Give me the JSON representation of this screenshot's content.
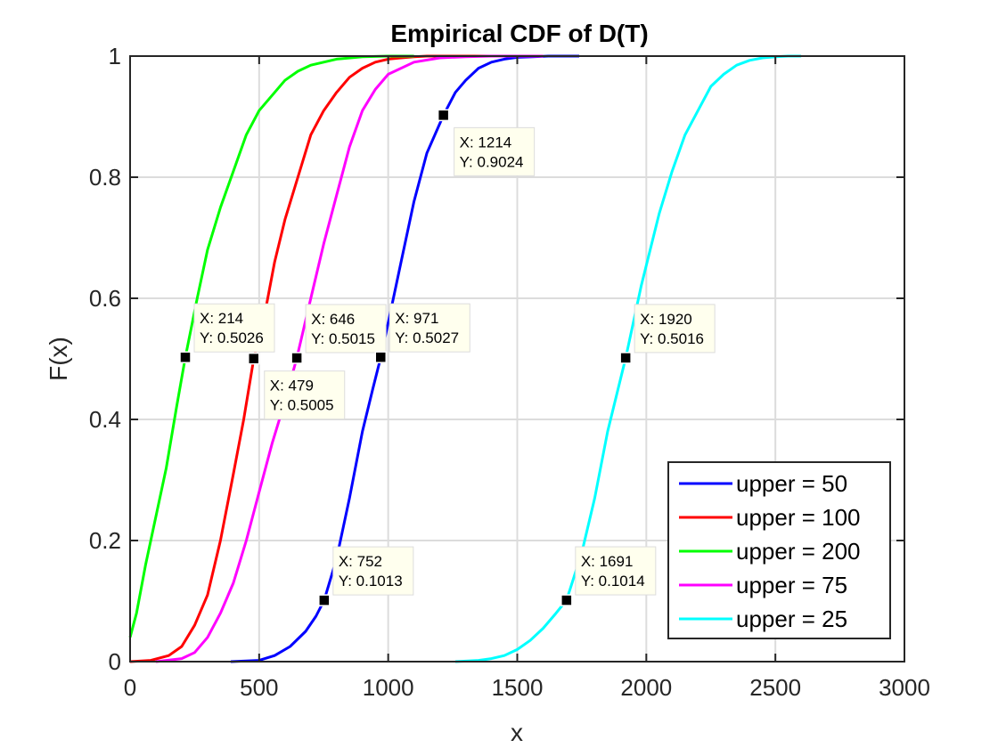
{
  "chart_data": {
    "type": "line",
    "title": "Empirical CDF of D(T)",
    "xlabel": "x",
    "ylabel": "F(x)",
    "xlim": [
      0,
      3000
    ],
    "ylim": [
      0,
      1
    ],
    "xticks": [
      0,
      500,
      1000,
      1500,
      2000,
      2500,
      3000
    ],
    "yticks": [
      0,
      0.2,
      0.4,
      0.6,
      0.8,
      1
    ],
    "xtick_labels": [
      "0",
      "500",
      "1000",
      "1500",
      "2000",
      "2500",
      "3000"
    ],
    "ytick_labels": [
      "0",
      "0.2",
      "0.4",
      "0.6",
      "0.8",
      "1"
    ],
    "grid": true,
    "legend_position": "bottom-right",
    "series": [
      {
        "name": "upper = 50",
        "color": "#0000ff",
        "x": [
          390,
          500,
          560,
          620,
          680,
          720,
          752,
          800,
          850,
          900,
          940,
          971,
          1000,
          1050,
          1100,
          1150,
          1214,
          1260,
          1300,
          1350,
          1400,
          1450,
          1500,
          1560,
          1620,
          1740
        ],
        "y": [
          0,
          0.002,
          0.01,
          0.025,
          0.05,
          0.075,
          0.1013,
          0.17,
          0.27,
          0.38,
          0.45,
          0.5027,
          0.56,
          0.66,
          0.76,
          0.84,
          0.9024,
          0.94,
          0.96,
          0.98,
          0.99,
          0.995,
          0.998,
          0.999,
          1,
          1
        ]
      },
      {
        "name": "upper = 100",
        "color": "#ff0000",
        "x": [
          0,
          80,
          150,
          200,
          250,
          300,
          350,
          400,
          440,
          479,
          520,
          560,
          600,
          650,
          700,
          750,
          800,
          850,
          900,
          950,
          1000,
          1050,
          1100,
          1150,
          1200,
          1300,
          1400
        ],
        "y": [
          0,
          0.002,
          0.01,
          0.025,
          0.06,
          0.11,
          0.2,
          0.31,
          0.4,
          0.5005,
          0.57,
          0.66,
          0.73,
          0.8,
          0.87,
          0.91,
          0.94,
          0.965,
          0.98,
          0.99,
          0.995,
          0.997,
          0.999,
          1,
          1,
          1,
          1
        ]
      },
      {
        "name": "upper = 200",
        "color": "#00ff00",
        "x": [
          0,
          25,
          60,
          100,
          140,
          180,
          214,
          260,
          300,
          350,
          400,
          450,
          500,
          560,
          600,
          650,
          700,
          750,
          800,
          900,
          1000,
          1100
        ],
        "y": [
          0.04,
          0.08,
          0.16,
          0.24,
          0.32,
          0.42,
          0.5026,
          0.6,
          0.68,
          0.75,
          0.81,
          0.87,
          0.91,
          0.94,
          0.96,
          0.975,
          0.985,
          0.99,
          0.995,
          0.999,
          1,
          1
        ]
      },
      {
        "name": "upper = 75",
        "color": "#ff00ff",
        "x": [
          100,
          200,
          250,
          300,
          350,
          400,
          450,
          500,
          550,
          600,
          646,
          700,
          750,
          800,
          850,
          900,
          950,
          1000,
          1100,
          1200,
          1300,
          1400,
          1500,
          1600
        ],
        "y": [
          0,
          0.005,
          0.015,
          0.04,
          0.08,
          0.13,
          0.2,
          0.28,
          0.36,
          0.43,
          0.5015,
          0.6,
          0.69,
          0.77,
          0.85,
          0.91,
          0.945,
          0.97,
          0.99,
          0.997,
          0.999,
          1,
          1,
          1
        ]
      },
      {
        "name": "upper = 25",
        "color": "#00ffff",
        "x": [
          1260,
          1350,
          1400,
          1450,
          1500,
          1550,
          1600,
          1650,
          1691,
          1750,
          1800,
          1850,
          1920,
          1980,
          2050,
          2100,
          2150,
          2200,
          2250,
          2300,
          2350,
          2400,
          2450,
          2500,
          2550,
          2600
        ],
        "y": [
          0,
          0.002,
          0.005,
          0.01,
          0.02,
          0.035,
          0.055,
          0.08,
          0.1014,
          0.18,
          0.27,
          0.38,
          0.5016,
          0.62,
          0.74,
          0.81,
          0.87,
          0.91,
          0.95,
          0.97,
          0.985,
          0.993,
          0.997,
          0.999,
          1,
          1
        ]
      }
    ],
    "annotations": [
      {
        "x": 1214,
        "y": 0.9024,
        "label_x": "X: 1214",
        "label_y": "Y: 0.9024",
        "placement": "below-right"
      },
      {
        "x": 214,
        "y": 0.5026,
        "label_x": "X: 214",
        "label_y": "Y: 0.5026",
        "placement": "above-right"
      },
      {
        "x": 479,
        "y": 0.5005,
        "label_x": "X: 479",
        "label_y": "Y: 0.5005",
        "placement": "below-right"
      },
      {
        "x": 646,
        "y": 0.5015,
        "label_x": "X: 646",
        "label_y": "Y: 0.5015",
        "placement": "above-right"
      },
      {
        "x": 971,
        "y": 0.5027,
        "label_x": "X: 971",
        "label_y": "Y: 0.5027",
        "placement": "above-right"
      },
      {
        "x": 1920,
        "y": 0.5016,
        "label_x": "X: 1920",
        "label_y": "Y: 0.5016",
        "placement": "above-right"
      },
      {
        "x": 752,
        "y": 0.1013,
        "label_x": "X: 752",
        "label_y": "Y: 0.1013",
        "placement": "above-right"
      },
      {
        "x": 1691,
        "y": 0.1014,
        "label_x": "X: 1691",
        "label_y": "Y: 0.1014",
        "placement": "above-right"
      }
    ]
  }
}
